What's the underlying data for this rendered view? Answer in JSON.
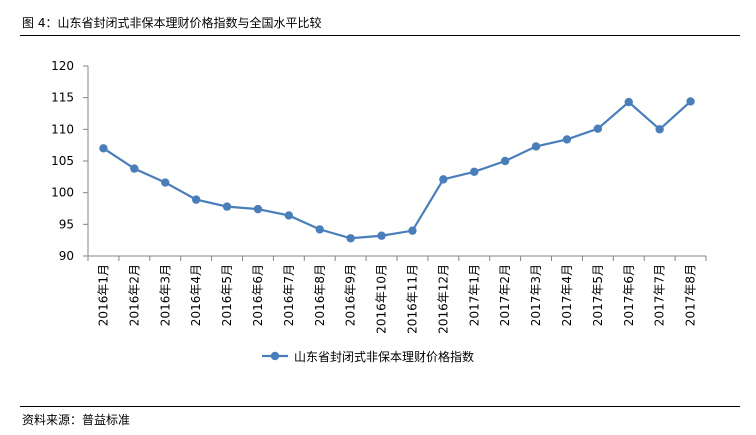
{
  "title": "图 4：山东省封闭式非保本理财价格指数与全国水平比较",
  "source": "资料来源：普益标准",
  "chart_data": {
    "type": "line",
    "title": "",
    "xlabel": "",
    "ylabel": "",
    "ylim": [
      90,
      120
    ],
    "yticks": [
      "90",
      "95",
      "100",
      "105",
      "110",
      "115",
      "120"
    ],
    "grid": false,
    "legend_position": "bottom",
    "categories": [
      "2016年1月",
      "2016年2月",
      "2016年3月",
      "2016年4月",
      "2016年5月",
      "2016年6月",
      "2016年7月",
      "2016年8月",
      "2016年9月",
      "2016年10月",
      "2016年11月",
      "2016年12月",
      "2017年1月",
      "2017年2月",
      "2017年3月",
      "2017年4月",
      "2017年5月",
      "2017年6月",
      "2017年7月",
      "2017年8月"
    ],
    "series": [
      {
        "name": "山东省封闭式非保本理财价格指数",
        "color": "#4a7ebb",
        "values": [
          107.0,
          103.8,
          101.6,
          98.9,
          97.8,
          97.4,
          96.4,
          94.2,
          92.8,
          93.2,
          94.0,
          102.1,
          103.3,
          105.0,
          107.3,
          108.4,
          110.1,
          114.3,
          110.0,
          114.4
        ]
      }
    ]
  }
}
